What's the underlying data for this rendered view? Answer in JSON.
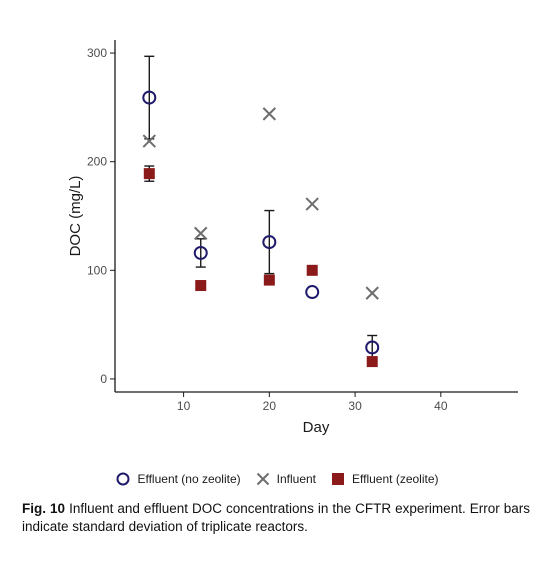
{
  "chart_data": {
    "type": "scatter",
    "xlabel": "Day",
    "ylabel": "DOC (mg/L)",
    "xlim": [
      2,
      49
    ],
    "ylim": [
      -12,
      312
    ],
    "xticks": [
      10,
      20,
      30,
      40
    ],
    "yticks": [
      0,
      100,
      200,
      300
    ],
    "grid": false,
    "legend_position": "bottom",
    "series": [
      {
        "name": "Effluent (no zeolite)",
        "marker": "open-circle",
        "color": "#1f1a6b",
        "x": [
          6,
          12,
          20,
          25,
          32
        ],
        "y": [
          259,
          116,
          126,
          80,
          29
        ],
        "error": [
          38,
          13,
          29,
          0,
          11
        ]
      },
      {
        "name": "Influent",
        "marker": "x",
        "color": "#6e6e6e",
        "x": [
          6,
          12,
          20,
          25,
          32
        ],
        "y": [
          219,
          134,
          244,
          161,
          79
        ]
      },
      {
        "name": "Effluent (zeolite)",
        "marker": "filled-square",
        "color": "#8b1a1a",
        "x": [
          6,
          12,
          20,
          25,
          32
        ],
        "y": [
          189,
          86,
          91,
          100,
          16
        ],
        "error": [
          7,
          2,
          3,
          0,
          2
        ]
      }
    ]
  },
  "caption": {
    "label": "Fig. 10",
    "text": "Influent and effluent DOC concentrations in the CFTR experiment. Error bars indicate standard deviation of triplicate reactors."
  }
}
